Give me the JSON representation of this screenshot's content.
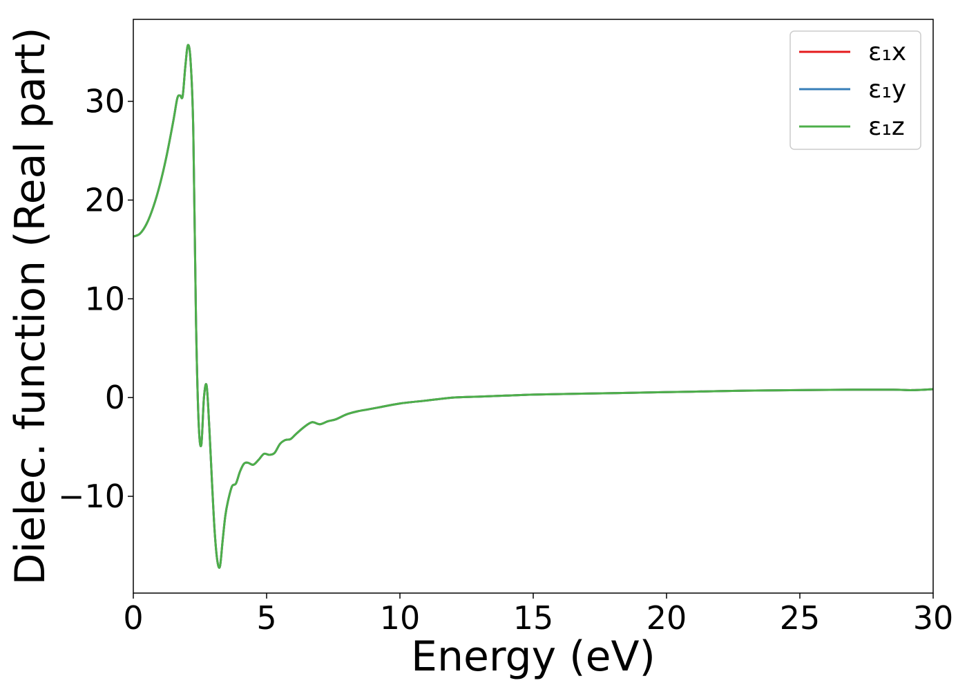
{
  "chart_data": {
    "type": "line",
    "title": "",
    "xlabel": "Energy (eV)",
    "ylabel": "Dielec. function (Real part)",
    "xlim": [
      0,
      30
    ],
    "ylim": [
      -19.8,
      38.3
    ],
    "xticks": [
      0,
      5,
      10,
      15,
      20,
      25,
      30
    ],
    "yticks": [
      -10,
      0,
      10,
      20,
      30
    ],
    "xtick_labels": [
      "0",
      "5",
      "10",
      "15",
      "20",
      "25",
      "30"
    ],
    "ytick_labels": [
      "−10",
      "0",
      "10",
      "20",
      "30"
    ],
    "grid": false,
    "legend_position": "top-right",
    "x": [
      0,
      0.25,
      0.5,
      0.75,
      1.0,
      1.25,
      1.5,
      1.65,
      1.75,
      1.85,
      1.95,
      2.05,
      2.15,
      2.25,
      2.35,
      2.45,
      2.55,
      2.65,
      2.75,
      2.85,
      2.95,
      3.05,
      3.15,
      3.25,
      3.35,
      3.45,
      3.55,
      3.7,
      3.85,
      4.0,
      4.15,
      4.3,
      4.5,
      4.7,
      4.9,
      5.1,
      5.3,
      5.5,
      5.7,
      5.9,
      6.1,
      6.4,
      6.7,
      7.0,
      7.3,
      7.6,
      8.0,
      8.4,
      8.8,
      9.2,
      10.0,
      11.0,
      12.0,
      13.0,
      14.0,
      15.0,
      17.0,
      19.0,
      21.0,
      23.0,
      25.0,
      27.0,
      28.5,
      29.2,
      30.0
    ],
    "series": [
      {
        "name": "ε₁x",
        "color": "#e41a1c",
        "values": [
          16.3,
          16.6,
          17.6,
          19.3,
          21.6,
          24.5,
          28.0,
          30.3,
          30.6,
          30.5,
          33.5,
          35.7,
          34.0,
          27.0,
          8.0,
          -2.5,
          -4.8,
          0.0,
          1.2,
          -3.0,
          -8.5,
          -13.5,
          -16.5,
          -17.1,
          -14.5,
          -12.0,
          -10.5,
          -9.0,
          -8.7,
          -7.5,
          -6.7,
          -6.6,
          -6.8,
          -6.3,
          -5.7,
          -5.8,
          -5.6,
          -4.7,
          -4.3,
          -4.2,
          -3.7,
          -3.0,
          -2.5,
          -2.7,
          -2.4,
          -2.2,
          -1.7,
          -1.4,
          -1.2,
          -1.0,
          -0.6,
          -0.3,
          0.0,
          0.1,
          0.2,
          0.3,
          0.4,
          0.5,
          0.6,
          0.7,
          0.75,
          0.8,
          0.8,
          0.75,
          0.85
        ]
      },
      {
        "name": "ε₁y",
        "color": "#377eb8",
        "values": [
          16.3,
          16.6,
          17.6,
          19.3,
          21.6,
          24.5,
          28.0,
          30.3,
          30.6,
          30.5,
          33.5,
          35.7,
          34.0,
          27.0,
          8.0,
          -2.5,
          -4.8,
          0.0,
          1.2,
          -3.0,
          -8.5,
          -13.5,
          -16.5,
          -17.1,
          -14.5,
          -12.0,
          -10.5,
          -9.0,
          -8.7,
          -7.5,
          -6.7,
          -6.6,
          -6.8,
          -6.3,
          -5.7,
          -5.8,
          -5.6,
          -4.7,
          -4.3,
          -4.2,
          -3.7,
          -3.0,
          -2.5,
          -2.7,
          -2.4,
          -2.2,
          -1.7,
          -1.4,
          -1.2,
          -1.0,
          -0.6,
          -0.3,
          0.0,
          0.1,
          0.2,
          0.3,
          0.4,
          0.5,
          0.6,
          0.7,
          0.75,
          0.8,
          0.8,
          0.75,
          0.85
        ]
      },
      {
        "name": "ε₁z",
        "color": "#4daf4a",
        "values": [
          16.3,
          16.6,
          17.6,
          19.3,
          21.6,
          24.5,
          28.0,
          30.3,
          30.6,
          30.5,
          33.5,
          35.7,
          34.0,
          27.0,
          8.0,
          -2.5,
          -4.8,
          0.0,
          1.2,
          -3.0,
          -8.5,
          -13.5,
          -16.5,
          -17.1,
          -14.5,
          -12.0,
          -10.5,
          -9.0,
          -8.7,
          -7.5,
          -6.7,
          -6.6,
          -6.8,
          -6.3,
          -5.7,
          -5.8,
          -5.6,
          -4.7,
          -4.3,
          -4.2,
          -3.7,
          -3.0,
          -2.5,
          -2.7,
          -2.4,
          -2.2,
          -1.7,
          -1.4,
          -1.2,
          -1.0,
          -0.6,
          -0.3,
          0.0,
          0.1,
          0.2,
          0.3,
          0.4,
          0.5,
          0.6,
          0.7,
          0.75,
          0.8,
          0.8,
          0.75,
          0.85
        ]
      }
    ]
  }
}
